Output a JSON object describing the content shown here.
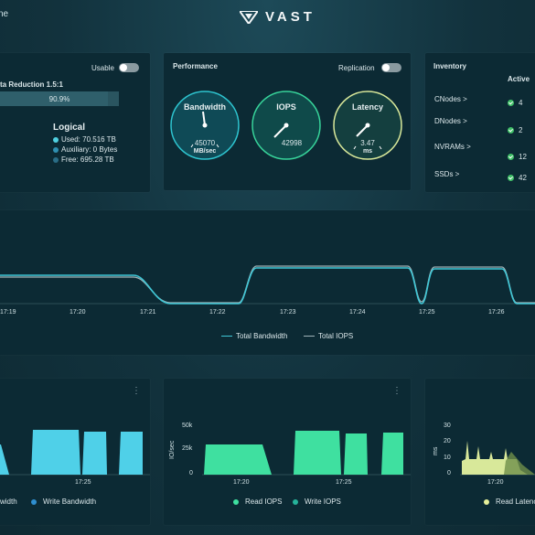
{
  "header": {
    "left_text": "ne",
    "logo_text": "VAST"
  },
  "data_reduction": {
    "toggle_label": "Usable",
    "title": "ta Reduction 1.5:1",
    "bar_value": "90.9%",
    "bar_fraction": 0.909,
    "logical_title": "Logical",
    "items": [
      {
        "label": "Used: 70.516 TB",
        "color": "#4fd0e0"
      },
      {
        "label": "Auxiliary: 0 Bytes",
        "color": "#2f8fb0"
      },
      {
        "label": "Free: 695.28 TB",
        "color": "#2a6d86"
      }
    ]
  },
  "performance": {
    "title": "Performance",
    "toggle_label": "Replication",
    "gauges": [
      {
        "title": "Bandwidth",
        "value": "45070",
        "unit": "MB/sec",
        "ring": "#2ec4cf",
        "fill": "#0f4a56"
      },
      {
        "title": "IOPS",
        "value": "42998",
        "unit": "",
        "ring": "#37d39a",
        "fill": "#0f4a4a"
      },
      {
        "title": "Latency",
        "value": "3.47",
        "unit": "ms",
        "ring": "#d8e89a",
        "fill": "#143f3f"
      }
    ]
  },
  "inventory": {
    "title": "Inventory",
    "column_header": "Active",
    "rows": [
      {
        "label": "CNodes >",
        "value": "4"
      },
      {
        "label": "DNodes >",
        "value": "2"
      },
      {
        "label": "NVRAMs >",
        "value": "12"
      },
      {
        "label": "SSDs >",
        "value": "42"
      }
    ]
  },
  "main_chart": {
    "x_ticks": [
      "17:19",
      "17:20",
      "17:21",
      "17:22",
      "17:23",
      "17:24",
      "17:25",
      "17:26"
    ],
    "legend": [
      {
        "label": "Total Bandwidth",
        "color": "#3fc7d6"
      },
      {
        "label": "Total IOPS",
        "color": "#9fb3b8"
      }
    ]
  },
  "bw_chart": {
    "x_ticks": [
      "17:25"
    ],
    "legend": [
      {
        "label": "width",
        "color": "#4fd0e8"
      },
      {
        "label": "Write Bandwidth",
        "color": "#2f8fd0"
      }
    ]
  },
  "iops_chart": {
    "y_label": "IO/sec",
    "y_ticks": [
      "50k",
      "25k",
      "0"
    ],
    "x_ticks": [
      "17:20",
      "17:25"
    ],
    "legend": [
      {
        "label": "Read IOPS",
        "color": "#3fe0a0"
      },
      {
        "label": "Write IOPS",
        "color": "#26b39a"
      }
    ]
  },
  "latency_chart": {
    "y_label": "ms",
    "y_ticks": [
      "30",
      "20",
      "10",
      "0"
    ],
    "x_ticks": [
      "17:20"
    ],
    "legend": [
      {
        "label": "Read Latenc",
        "color": "#e6ef9a"
      }
    ]
  },
  "colors": {
    "accent": "#3fc7d6",
    "panel": "#0c2a34"
  }
}
